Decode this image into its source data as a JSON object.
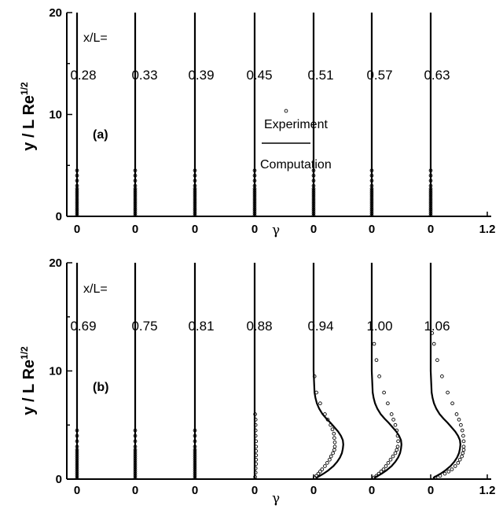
{
  "chart_data": [
    {
      "type": "line",
      "panel_label": "(a)",
      "station_prefix": "x/L=",
      "xlabel": "γ",
      "ylabel": "y / L Re",
      "ylabel_sup": "1/2",
      "xlim": [
        0,
        1.2
      ],
      "ylim": [
        0,
        20
      ],
      "x_ticks": [
        "0",
        "0",
        "0",
        "0",
        "0",
        "0",
        "0",
        "1.2"
      ],
      "y_ticks": [
        "0",
        "10",
        "20"
      ],
      "legend": {
        "experiment": "Experiment",
        "computation": "Computation"
      },
      "stations": [
        {
          "label": "0.28",
          "computation": {
            "y": [
              0,
              20
            ],
            "gamma": [
              0,
              0
            ]
          },
          "experiment": {
            "y": [
              0.1,
              0.3,
              0.5,
              0.7,
              0.9,
              1.1,
              1.3,
              1.5,
              1.7,
              1.9,
              2.1,
              2.3,
              2.5,
              2.7,
              3.0,
              3.5,
              4.0,
              4.5
            ],
            "gamma": [
              0,
              0,
              0,
              0,
              0,
              0,
              0,
              0,
              0,
              0,
              0,
              0,
              0,
              0,
              0,
              0,
              0,
              0
            ]
          }
        },
        {
          "label": "0.33",
          "computation": {
            "y": [
              0,
              20
            ],
            "gamma": [
              0,
              0
            ]
          },
          "experiment": {
            "y": [
              0.1,
              0.3,
              0.5,
              0.7,
              0.9,
              1.1,
              1.3,
              1.5,
              1.7,
              1.9,
              2.1,
              2.3,
              2.5,
              2.7,
              3.0,
              3.5,
              4.0,
              4.5
            ],
            "gamma": [
              0,
              0,
              0,
              0,
              0,
              0,
              0,
              0,
              0,
              0,
              0,
              0,
              0,
              0,
              0,
              0,
              0,
              0
            ]
          }
        },
        {
          "label": "0.39",
          "computation": {
            "y": [
              0,
              20
            ],
            "gamma": [
              0,
              0
            ]
          },
          "experiment": {
            "y": [
              0.1,
              0.3,
              0.5,
              0.7,
              0.9,
              1.1,
              1.3,
              1.5,
              1.7,
              1.9,
              2.1,
              2.3,
              2.5,
              2.7,
              3.0,
              3.5,
              4.0,
              4.5
            ],
            "gamma": [
              0,
              0,
              0,
              0,
              0,
              0,
              0,
              0,
              0,
              0,
              0,
              0,
              0,
              0,
              0,
              0,
              0,
              0
            ]
          }
        },
        {
          "label": "0.45",
          "computation": {
            "y": [
              0,
              20
            ],
            "gamma": [
              0,
              0
            ]
          },
          "experiment": {
            "y": [
              0.1,
              0.3,
              0.5,
              0.7,
              0.9,
              1.1,
              1.3,
              1.5,
              1.7,
              1.9,
              2.1,
              2.3,
              2.5,
              2.7,
              3.0,
              3.5,
              4.0,
              4.5
            ],
            "gamma": [
              0,
              0,
              0,
              0,
              0,
              0,
              0,
              0,
              0,
              0,
              0,
              0,
              0,
              0,
              0,
              0,
              0,
              0
            ]
          }
        },
        {
          "label": "0.51",
          "computation": {
            "y": [
              0,
              20
            ],
            "gamma": [
              0,
              0
            ]
          },
          "experiment": {
            "y": [
              0.1,
              0.3,
              0.5,
              0.7,
              0.9,
              1.1,
              1.3,
              1.5,
              1.7,
              1.9,
              2.1,
              2.3,
              2.5,
              2.7,
              3.0,
              3.5,
              4.0,
              4.5
            ],
            "gamma": [
              0,
              0,
              0,
              0,
              0,
              0,
              0,
              0,
              0,
              0,
              0,
              0,
              0,
              0,
              0,
              0,
              0,
              0
            ]
          }
        },
        {
          "label": "0.57",
          "computation": {
            "y": [
              0,
              20
            ],
            "gamma": [
              0,
              0
            ]
          },
          "experiment": {
            "y": [
              0.1,
              0.3,
              0.5,
              0.7,
              0.9,
              1.1,
              1.3,
              1.5,
              1.7,
              1.9,
              2.1,
              2.3,
              2.5,
              2.7,
              3.0,
              3.5,
              4.0,
              4.5
            ],
            "gamma": [
              0,
              0,
              0,
              0,
              0,
              0,
              0,
              0,
              0,
              0,
              0,
              0,
              0,
              0,
              0,
              0,
              0,
              0
            ]
          }
        },
        {
          "label": "0.63",
          "computation": {
            "y": [
              0,
              20
            ],
            "gamma": [
              0,
              0
            ]
          },
          "experiment": {
            "y": [
              0.1,
              0.3,
              0.5,
              0.7,
              0.9,
              1.1,
              1.3,
              1.5,
              1.7,
              1.9,
              2.1,
              2.3,
              2.5,
              2.7,
              3.0,
              3.5,
              4.0,
              4.5
            ],
            "gamma": [
              0,
              0,
              0,
              0,
              0,
              0,
              0,
              0,
              0,
              0,
              0,
              0,
              0,
              0,
              0,
              0,
              0,
              0
            ]
          }
        }
      ]
    },
    {
      "type": "line",
      "panel_label": "(b)",
      "station_prefix": "x/L=",
      "xlabel": "γ",
      "ylabel": "y / L Re",
      "ylabel_sup": "1/2",
      "xlim": [
        0,
        1.2
      ],
      "ylim": [
        0,
        20
      ],
      "x_ticks": [
        "0",
        "0",
        "0",
        "0",
        "0",
        "0",
        "0",
        "1.2"
      ],
      "y_ticks": [
        "0",
        "10",
        "20"
      ],
      "stations": [
        {
          "label": "0.69",
          "computation": {
            "y": [
              0,
              20
            ],
            "gamma": [
              0,
              0
            ]
          },
          "experiment": {
            "y": [
              0.1,
              0.3,
              0.5,
              0.7,
              0.9,
              1.1,
              1.3,
              1.5,
              1.7,
              1.9,
              2.1,
              2.3,
              2.5,
              2.7,
              3.0,
              3.5,
              4.0,
              4.5
            ],
            "gamma": [
              0,
              0,
              0,
              0,
              0,
              0,
              0,
              0,
              0,
              0,
              0,
              0,
              0,
              0,
              0,
              0,
              0,
              0
            ]
          }
        },
        {
          "label": "0.75",
          "computation": {
            "y": [
              0,
              20
            ],
            "gamma": [
              0,
              0
            ]
          },
          "experiment": {
            "y": [
              0.1,
              0.3,
              0.5,
              0.7,
              0.9,
              1.1,
              1.3,
              1.5,
              1.7,
              1.9,
              2.1,
              2.3,
              2.5,
              2.7,
              3.0,
              3.5,
              4.0,
              4.5
            ],
            "gamma": [
              0,
              0,
              0,
              0,
              0,
              0,
              0,
              0,
              0,
              0,
              0,
              0,
              0,
              0,
              0,
              0,
              0,
              0
            ]
          }
        },
        {
          "label": "0.81",
          "computation": {
            "y": [
              0,
              20
            ],
            "gamma": [
              0,
              0
            ]
          },
          "experiment": {
            "y": [
              0.1,
              0.3,
              0.5,
              0.7,
              0.9,
              1.1,
              1.3,
              1.5,
              1.7,
              1.9,
              2.1,
              2.3,
              2.5,
              2.7,
              3.0,
              3.5,
              4.0,
              4.5
            ],
            "gamma": [
              0,
              0,
              0,
              0,
              0,
              0,
              0,
              0,
              0,
              0,
              0,
              0,
              0,
              0,
              0,
              0,
              0,
              0
            ]
          }
        },
        {
          "label": "0.88",
          "computation": {
            "y": [
              0,
              20
            ],
            "gamma": [
              0,
              0
            ]
          },
          "experiment": {
            "y": [
              0.2,
              0.6,
              1.0,
              1.4,
              1.8,
              2.2,
              2.6,
              3.0,
              3.5,
              4.0,
              4.5,
              5.0,
              5.5,
              6.0
            ],
            "gamma": [
              0.01,
              0.02,
              0.02,
              0.03,
              0.03,
              0.03,
              0.03,
              0.03,
              0.03,
              0.02,
              0.02,
              0.02,
              0.02,
              0.01
            ]
          }
        },
        {
          "label": "0.94",
          "computation": {
            "y": [
              0.1,
              0.3,
              0.5,
              0.8,
              1.2,
              1.6,
              2.0,
              2.4,
              2.8,
              3.2,
              3.6,
              4.0,
              4.4,
              4.8,
              5.2,
              5.6,
              6.0,
              6.5,
              7.0,
              7.5,
              8.0,
              9.0,
              10.0,
              20.0
            ],
            "gamma": [
              0.05,
              0.13,
              0.21,
              0.31,
              0.42,
              0.5,
              0.56,
              0.6,
              0.62,
              0.63,
              0.62,
              0.58,
              0.52,
              0.44,
              0.36,
              0.27,
              0.19,
              0.12,
              0.07,
              0.04,
              0.02,
              0.01,
              0.0,
              0.0
            ]
          },
          "experiment": {
            "y": [
              0.15,
              0.3,
              0.5,
              0.7,
              0.9,
              1.2,
              1.5,
              1.8,
              2.1,
              2.4,
              2.7,
              3.0,
              3.4,
              3.8,
              4.2,
              4.6,
              5.0,
              5.5,
              6.0,
              7.0,
              8.0,
              9.5
            ],
            "gamma": [
              0.02,
              0.06,
              0.1,
              0.14,
              0.18,
              0.24,
              0.29,
              0.34,
              0.37,
              0.41,
              0.44,
              0.45,
              0.45,
              0.44,
              0.43,
              0.4,
              0.36,
              0.3,
              0.24,
              0.14,
              0.06,
              0.02
            ]
          }
        },
        {
          "label": "1.00",
          "computation": {
            "y": [
              0.1,
              0.3,
              0.5,
              0.8,
              1.2,
              1.6,
              2.0,
              2.4,
              2.8,
              3.2,
              3.6,
              4.0,
              4.4,
              4.8,
              5.2,
              5.6,
              6.0,
              6.5,
              7.0,
              7.5,
              8.0,
              9.0,
              10.0,
              20.0
            ],
            "gamma": [
              0.05,
              0.13,
              0.21,
              0.31,
              0.42,
              0.5,
              0.56,
              0.6,
              0.62,
              0.63,
              0.62,
              0.58,
              0.52,
              0.44,
              0.36,
              0.27,
              0.19,
              0.12,
              0.07,
              0.04,
              0.02,
              0.01,
              0.0,
              0.0
            ]
          },
          "experiment": {
            "y": [
              0.15,
              0.3,
              0.5,
              0.7,
              0.9,
              1.2,
              1.5,
              1.8,
              2.1,
              2.4,
              2.7,
              3.0,
              3.5,
              4.0,
              4.5,
              5.0,
              5.5,
              6.0,
              7.0,
              8.0,
              9.5,
              11.0,
              12.5
            ],
            "gamma": [
              0.05,
              0.1,
              0.15,
              0.2,
              0.25,
              0.3,
              0.35,
              0.4,
              0.45,
              0.5,
              0.53,
              0.55,
              0.56,
              0.55,
              0.53,
              0.5,
              0.46,
              0.42,
              0.34,
              0.26,
              0.16,
              0.1,
              0.05
            ]
          }
        },
        {
          "label": "1.06",
          "computation": {
            "y": [
              0.1,
              0.3,
              0.5,
              0.8,
              1.2,
              1.6,
              2.0,
              2.4,
              2.8,
              3.2,
              3.6,
              4.0,
              4.4,
              4.8,
              5.2,
              5.6,
              6.0,
              6.5,
              7.0,
              7.5,
              8.0,
              9.0,
              10.0,
              20.0
            ],
            "gamma": [
              0.05,
              0.13,
              0.21,
              0.31,
              0.42,
              0.5,
              0.56,
              0.6,
              0.62,
              0.63,
              0.62,
              0.58,
              0.52,
              0.44,
              0.36,
              0.27,
              0.19,
              0.12,
              0.07,
              0.04,
              0.02,
              0.01,
              0.0,
              0.0
            ]
          },
          "experiment": {
            "y": [
              0.15,
              0.3,
              0.5,
              0.7,
              0.9,
              1.2,
              1.5,
              1.8,
              2.1,
              2.4,
              2.7,
              3.0,
              3.5,
              4.0,
              4.5,
              5.0,
              5.5,
              6.0,
              7.0,
              8.0,
              9.5,
              11.0,
              12.5,
              13.5
            ],
            "gamma": [
              0.1,
              0.2,
              0.3,
              0.38,
              0.45,
              0.52,
              0.58,
              0.62,
              0.66,
              0.68,
              0.7,
              0.7,
              0.7,
              0.69,
              0.67,
              0.64,
              0.6,
              0.55,
              0.46,
              0.36,
              0.24,
              0.14,
              0.07,
              0.03
            ]
          }
        }
      ]
    }
  ]
}
